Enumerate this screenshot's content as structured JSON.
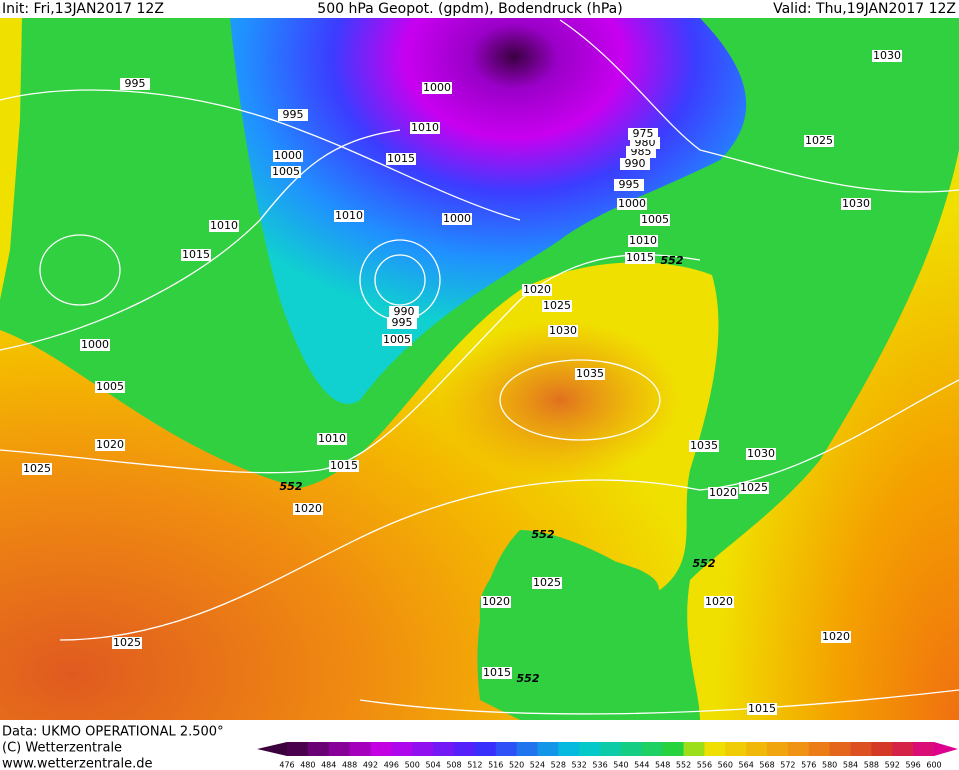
{
  "header": {
    "init": "Init: Fri,13JAN2017 12Z",
    "title": "500 hPa Geopot. (gpdm), Bodendruck (hPa)",
    "valid": "Valid: Thu,19JAN2017 12Z"
  },
  "footer": {
    "data": "Data: UKMO OPERATIONAL 2.500°",
    "copyright": "(C) Wetterzentrale",
    "url": "www.wetterzentrale.de"
  },
  "colorbar": {
    "labels": [
      476,
      480,
      484,
      488,
      492,
      496,
      500,
      504,
      508,
      512,
      516,
      520,
      524,
      528,
      532,
      536,
      540,
      544,
      548,
      552,
      556,
      560,
      564,
      568,
      572,
      576,
      580,
      584,
      588,
      592,
      596,
      600
    ]
  },
  "contour_labels": [
    995,
    995,
    1000,
    1005,
    1010,
    1015,
    1000,
    1005,
    1020,
    1025,
    1000,
    1010,
    1015,
    1010,
    1000,
    990,
    995,
    1005,
    1010,
    1015,
    1020,
    552,
    1020,
    1025,
    1030,
    1035,
    1015,
    552,
    1010,
    1005,
    1000,
    995,
    990,
    985,
    980,
    975,
    1030,
    1025,
    1030,
    1035,
    1030,
    1025,
    1020,
    552,
    1025,
    1020,
    552,
    1020,
    1020,
    1015,
    552,
    1015,
    1025
  ]
}
